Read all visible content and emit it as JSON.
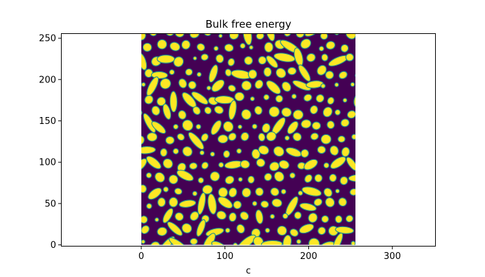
{
  "chart_data": {
    "type": "heatmap",
    "title": "Bulk free energy",
    "xlabel": "c",
    "ylabel": "",
    "xlim": [
      -96,
      352
    ],
    "ylim": [
      -2,
      256
    ],
    "image_extent": {
      "x": [
        0,
        256
      ],
      "y": [
        0,
        256
      ]
    },
    "colormap": "viridis",
    "low_color": "#440154",
    "mid_color": "#21918c",
    "high_color": "#fde725",
    "pattern": "spinodal decomposition: yellow droplets and elongated domains on a dark purple matrix",
    "x_ticks": [
      0,
      100,
      200,
      300
    ],
    "x_tick_labels": [
      "0",
      "100",
      "200",
      "300"
    ],
    "y_ticks": [
      0,
      50,
      100,
      150,
      200,
      250
    ],
    "y_tick_labels": [
      "0",
      "50",
      "100",
      "150",
      "200",
      "250"
    ],
    "grid": false,
    "legend": "none",
    "colorbar": false
  }
}
